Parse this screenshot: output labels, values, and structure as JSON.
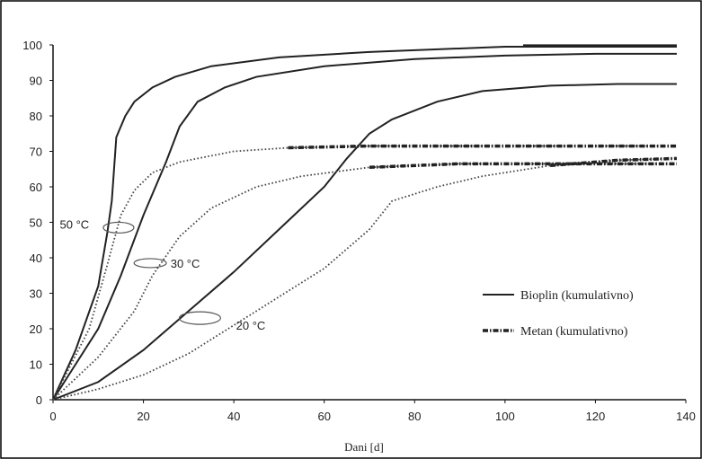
{
  "chart_data": {
    "type": "line",
    "xlabel": "Dani [d]",
    "ylabel": "",
    "xlim": [
      0,
      140
    ],
    "ylim": [
      0,
      100
    ],
    "x_ticks": [
      0,
      20,
      40,
      60,
      80,
      100,
      120,
      140
    ],
    "y_ticks": [
      0,
      10,
      20,
      30,
      40,
      50,
      60,
      70,
      80,
      90,
      100
    ],
    "grid": false,
    "legend_position": "right",
    "legend": [
      {
        "label": "Bioplin (kumulativno)",
        "style": "solid"
      },
      {
        "label": "Metan (kumulativno)",
        "style": "dashdot"
      }
    ],
    "annotations": [
      {
        "text": "50 °C",
        "x": 14,
        "y": 50
      },
      {
        "text": "30 °C",
        "x": 22,
        "y": 39
      },
      {
        "text": "20 °C",
        "x": 32,
        "y": 23
      }
    ],
    "series": [
      {
        "style": "solid",
        "points": [
          [
            0,
            0
          ],
          [
            5,
            14
          ],
          [
            10,
            32
          ],
          [
            12,
            47
          ],
          [
            13,
            56
          ],
          [
            14,
            74
          ],
          [
            16,
            80
          ],
          [
            18,
            84
          ],
          [
            22,
            88
          ],
          [
            27,
            91
          ],
          [
            35,
            94
          ],
          [
            50,
            96.5
          ],
          [
            70,
            98
          ],
          [
            100,
            99.5
          ],
          [
            138,
            99.5
          ]
        ]
      },
      {
        "style": "solid",
        "points": [
          [
            0,
            0
          ],
          [
            5,
            10
          ],
          [
            10,
            20
          ],
          [
            15,
            35
          ],
          [
            20,
            52
          ],
          [
            25,
            67
          ],
          [
            28,
            77
          ],
          [
            32,
            84
          ],
          [
            38,
            88
          ],
          [
            45,
            91
          ],
          [
            60,
            94
          ],
          [
            80,
            96
          ],
          [
            100,
            97
          ],
          [
            120,
            97.5
          ],
          [
            138,
            97.5
          ]
        ]
      },
      {
        "style": "solid",
        "points": [
          [
            0,
            0
          ],
          [
            10,
            5
          ],
          [
            20,
            14
          ],
          [
            30,
            25
          ],
          [
            40,
            36
          ],
          [
            50,
            48
          ],
          [
            60,
            60
          ],
          [
            65,
            68
          ],
          [
            70,
            75
          ],
          [
            75,
            79
          ],
          [
            85,
            84
          ],
          [
            95,
            87
          ],
          [
            110,
            88.5
          ],
          [
            125,
            89
          ],
          [
            138,
            89
          ]
        ]
      },
      {
        "style": "dotted",
        "points": [
          [
            0,
            0
          ],
          [
            8,
            20
          ],
          [
            12,
            38
          ],
          [
            15,
            52
          ],
          [
            18,
            59
          ],
          [
            22,
            64
          ],
          [
            28,
            67
          ],
          [
            40,
            70
          ],
          [
            52,
            71
          ],
          [
            70,
            71.5
          ],
          [
            100,
            71.5
          ],
          [
            138,
            71.5
          ]
        ]
      },
      {
        "style": "dotted",
        "points": [
          [
            0,
            0
          ],
          [
            10,
            12
          ],
          [
            18,
            25
          ],
          [
            22,
            35
          ],
          [
            28,
            46
          ],
          [
            35,
            54
          ],
          [
            45,
            60
          ],
          [
            55,
            63
          ],
          [
            70,
            65.5
          ],
          [
            90,
            66.5
          ],
          [
            110,
            66.5
          ],
          [
            138,
            66.5
          ]
        ]
      },
      {
        "style": "dotted",
        "points": [
          [
            0,
            0
          ],
          [
            10,
            3
          ],
          [
            20,
            7
          ],
          [
            30,
            13
          ],
          [
            40,
            21
          ],
          [
            50,
            29
          ],
          [
            60,
            37
          ],
          [
            70,
            48
          ],
          [
            75,
            56
          ],
          [
            85,
            60
          ],
          [
            95,
            63
          ],
          [
            110,
            66
          ],
          [
            125,
            67.5
          ],
          [
            138,
            68
          ]
        ]
      }
    ]
  }
}
